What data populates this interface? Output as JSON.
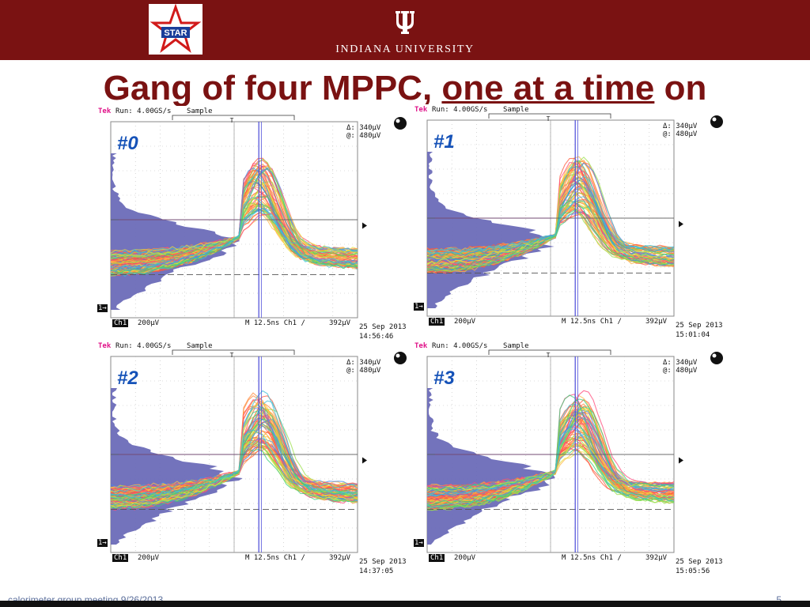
{
  "header": {
    "logo_text": "STAR",
    "university_name": "INDIANA UNIVERSITY",
    "colors": {
      "crimson": "#7a1212",
      "white": "#ffffff"
    }
  },
  "title": {
    "part1": "Gang of four MPPC, ",
    "part2_underlined": "one at a time",
    "part3": " on"
  },
  "panels": [
    {
      "label": "#0",
      "header": {
        "brand": "Tek",
        "run": "Run: 4.00GS/s",
        "mode": "Sample"
      },
      "meas": {
        "delta": "Δ: 340μV",
        "at": "@: 480μV"
      },
      "footer": {
        "channel": "Ch1",
        "scale": "200μV",
        "timebase": "M 12.5ns  Ch1 ∕",
        "trigger": "392μV",
        "date": "25 Sep 2013",
        "time": "14:56:46"
      },
      "marker": "1→"
    },
    {
      "label": "#1",
      "header": {
        "brand": "Tek",
        "run": "Run: 4.00GS/s",
        "mode": "Sample"
      },
      "meas": {
        "delta": "Δ: 340μV",
        "at": "@: 480μV"
      },
      "footer": {
        "channel": "Ch1",
        "scale": "200μV",
        "timebase": "M 12.5ns  Ch1 ∕",
        "trigger": "392μV",
        "date": "25 Sep 2013",
        "time": "15:01:04"
      },
      "marker": "1→"
    },
    {
      "label": "#2",
      "header": {
        "brand": "Tek",
        "run": "Run: 4.00GS/s",
        "mode": "Sample"
      },
      "meas": {
        "delta": "Δ: 340μV",
        "at": "@: 480μV"
      },
      "footer": {
        "channel": "Ch1",
        "scale": "200μV",
        "timebase": "M 12.5ns  Ch1 ∕",
        "trigger": "392μV",
        "date": "25 Sep 2013",
        "time": "14:37:05"
      },
      "marker": "1→"
    },
    {
      "label": "#3",
      "header": {
        "brand": "Tek",
        "run": "Run: 4.00GS/s",
        "mode": "Sample"
      },
      "meas": {
        "delta": "Δ: 340μV",
        "at": "@: 480μV"
      },
      "footer": {
        "channel": "Ch1",
        "scale": "200μV",
        "timebase": "M 12.5ns  Ch1 ∕",
        "trigger": "392μV",
        "date": "25 Sep 2013",
        "time": "15:05:56"
      },
      "marker": "1→"
    }
  ],
  "footer": {
    "left": "calorimeter group meeting 9/26/2013",
    "page": "5"
  }
}
